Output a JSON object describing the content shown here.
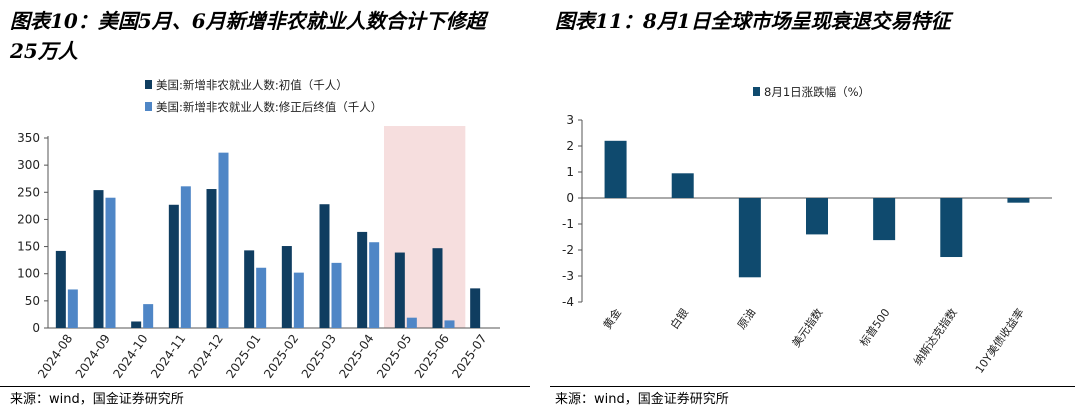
{
  "left_title": "图表10：美国5月、6月新增非农就业人数合计下修超25万人",
  "right_title": "图表11：8月1日全球市场呈现衰退交易特征",
  "left_source": "来源：wind，国金证券研究所",
  "right_source": "来源：wind，国金证券研究所",
  "colors": {
    "series_initial": "#0f3d60",
    "series_revised": "#4f86c6",
    "highlight": "#f6dede",
    "bar_right": "#0f4a6e"
  },
  "chart_data": [
    {
      "type": "bar",
      "title": "",
      "categories": [
        "2024-08",
        "2024-09",
        "2024-10",
        "2024-11",
        "2024-12",
        "2025-01",
        "2025-02",
        "2025-03",
        "2025-04",
        "2025-05",
        "2025-06",
        "2025-07"
      ],
      "series": [
        {
          "name": "美国:新增非农就业人数:初值（千人）",
          "values": [
            142,
            254,
            12,
            227,
            256,
            143,
            151,
            228,
            177,
            139,
            147,
            73
          ]
        },
        {
          "name": "美国:新增非农就业人数:修正后终值（千人）",
          "values": [
            71,
            240,
            44,
            261,
            323,
            111,
            102,
            120,
            158,
            19,
            14,
            null
          ]
        }
      ],
      "ylim": [
        0,
        350
      ],
      "yticks": [
        0,
        50,
        100,
        150,
        200,
        250,
        300,
        350
      ],
      "highlight_categories": [
        "2025-05",
        "2025-06"
      ],
      "legend": "top-left",
      "grid": false
    },
    {
      "type": "bar",
      "title": "",
      "categories": [
        "黄金",
        "白银",
        "原油",
        "美元指数",
        "标普500",
        "纳斯达克指数",
        "10Y美债收益率"
      ],
      "series": [
        {
          "name": "8月1日涨跌幅（%）",
          "values": [
            2.2,
            0.95,
            -3.05,
            -1.4,
            -1.62,
            -2.27,
            -0.18
          ]
        }
      ],
      "ylim": [
        -4,
        3
      ],
      "yticks": [
        -4,
        -3,
        -2,
        -1,
        0,
        1,
        2,
        3
      ],
      "legend": "top-center",
      "grid": false
    }
  ]
}
